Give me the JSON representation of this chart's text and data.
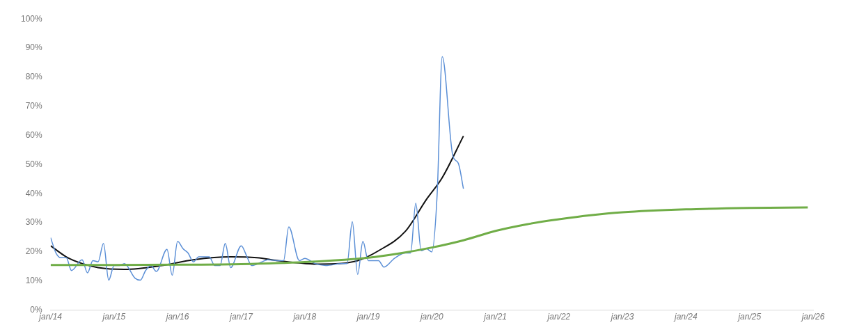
{
  "chart_data": {
    "type": "line",
    "marker": "none",
    "grid": false,
    "legend": false,
    "xlim": [
      "2014-01",
      "2026-01"
    ],
    "xticks": [
      {
        "value": "2014-01",
        "label": "jan/14"
      },
      {
        "value": "2015-01",
        "label": "jan/15"
      },
      {
        "value": "2016-01",
        "label": "jan/16"
      },
      {
        "value": "2017-01",
        "label": "jan/17"
      },
      {
        "value": "2018-01",
        "label": "jan/18"
      },
      {
        "value": "2019-01",
        "label": "jan/19"
      },
      {
        "value": "2020-01",
        "label": "jan/20"
      },
      {
        "value": "2021-01",
        "label": "jan/21"
      },
      {
        "value": "2022-01",
        "label": "jan/22"
      },
      {
        "value": "2023-01",
        "label": "jan/23"
      },
      {
        "value": "2024-01",
        "label": "jan/24"
      },
      {
        "value": "2025-01",
        "label": "jan/25"
      },
      {
        "value": "2026-01",
        "label": "jan/26"
      }
    ],
    "ylim": [
      0,
      100
    ],
    "yticks": [
      {
        "value": 0,
        "label": "0%"
      },
      {
        "value": 10,
        "label": "10%"
      },
      {
        "value": 20,
        "label": "20%"
      },
      {
        "value": 30,
        "label": "30%"
      },
      {
        "value": 40,
        "label": "40%"
      },
      {
        "value": 50,
        "label": "50%"
      },
      {
        "value": 60,
        "label": "60%"
      },
      {
        "value": 70,
        "label": "70%"
      },
      {
        "value": 80,
        "label": "80%"
      },
      {
        "value": 90,
        "label": "90%"
      },
      {
        "value": 100,
        "label": "100%"
      }
    ],
    "series": [
      {
        "color": "#70ad47",
        "x": [
          "2014-01",
          "2015-01",
          "2016-01",
          "2017-01",
          "2018-01",
          "2019-01",
          "2019-07",
          "2020-01",
          "2020-07",
          "2021-01",
          "2021-07",
          "2022-01",
          "2022-07",
          "2023-01",
          "2024-01",
          "2025-01",
          "2025-12"
        ],
        "values": [
          15.5,
          15.5,
          15.6,
          15.8,
          16.5,
          18,
          19.5,
          21.5,
          24,
          27.2,
          29.5,
          31.2,
          32.6,
          33.6,
          34.6,
          35.1,
          35.3
        ]
      },
      {
        "color": "#5b8fd6",
        "x": [
          "2014-01",
          "2014-02",
          "2014-03",
          "2014-04",
          "2014-05",
          "2014-07",
          "2014-08",
          "2014-09",
          "2014-10",
          "2014-11",
          "2014-12",
          "2015-01",
          "2015-02",
          "2015-03",
          "2015-05",
          "2015-06",
          "2015-07",
          "2015-08",
          "2015-09",
          "2015-11",
          "2015-12",
          "2016-01",
          "2016-02",
          "2016-03",
          "2016-04",
          "2016-05",
          "2016-07",
          "2016-08",
          "2016-09",
          "2016-10",
          "2016-11",
          "2017-01",
          "2017-02",
          "2017-03",
          "2017-05",
          "2017-06",
          "2017-08",
          "2017-09",
          "2017-10",
          "2017-12",
          "2018-01",
          "2018-03",
          "2018-05",
          "2018-08",
          "2018-09",
          "2018-10",
          "2018-11",
          "2018-12",
          "2019-01",
          "2019-03",
          "2019-04",
          "2019-06",
          "2019-08",
          "2019-09",
          "2019-10",
          "2019-11",
          "2019-12",
          "2020-01",
          "2020-02",
          "2020-03",
          "2020-05",
          "2020-06",
          "2020-07"
        ],
        "values": [
          24.9,
          19.6,
          18,
          18,
          13.6,
          17.3,
          12.8,
          17,
          16.6,
          22.9,
          10.3,
          15.3,
          15.3,
          16,
          11,
          10.3,
          13.6,
          15.3,
          13.3,
          20.9,
          12,
          23.6,
          21.1,
          19.6,
          16.6,
          18.3,
          18.3,
          15.3,
          15.3,
          22.9,
          14.6,
          22.1,
          18.6,
          15.3,
          16.6,
          17.3,
          17,
          17,
          28.6,
          17,
          17.8,
          16,
          15.3,
          16,
          16,
          30.4,
          12.3,
          23.6,
          17,
          17,
          14.8,
          17.8,
          19.6,
          19.6,
          36.7,
          20.4,
          21.1,
          20,
          40,
          87,
          53,
          50.5,
          41.7
        ]
      },
      {
        "color": "#111111",
        "x": [
          "2014-01",
          "2014-04",
          "2014-07",
          "2014-10",
          "2015-03",
          "2015-10",
          "2016-04",
          "2016-11",
          "2017-04",
          "2017-08",
          "2018-04",
          "2018-11",
          "2019-03",
          "2019-08",
          "2019-12",
          "2020-03",
          "2020-07"
        ],
        "values": [
          22.1,
          18.3,
          16,
          14.6,
          14,
          15.3,
          17.3,
          18.3,
          18,
          17,
          15.8,
          17,
          20.4,
          27,
          38,
          45.5,
          59.8
        ]
      }
    ]
  }
}
